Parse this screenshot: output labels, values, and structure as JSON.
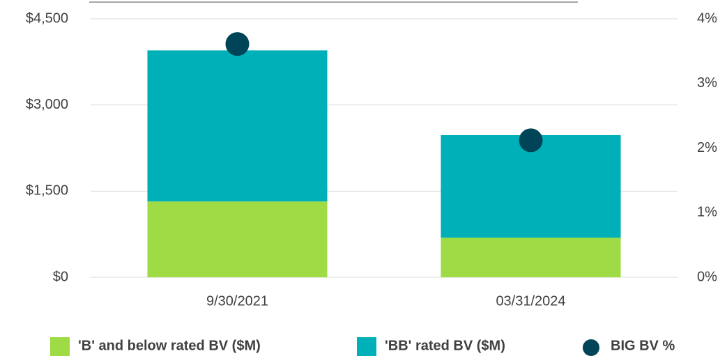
{
  "chart_data": {
    "type": "bar",
    "categories": [
      "9/30/2021",
      "03/31/2024"
    ],
    "series": [
      {
        "name": "'B' and below rated BV ($M)",
        "color": "#9edb45",
        "values": [
          1320,
          690
        ]
      },
      {
        "name": "'BB' rated BV ($M)",
        "color": "#00b0b9",
        "values": [
          2630,
          1785
        ]
      },
      {
        "name": "BIG BV %",
        "color": "#004457",
        "axis": "y2",
        "values": [
          3.61,
          2.12
        ]
      }
    ],
    "stacked": true,
    "ylim": [
      0,
      4500
    ],
    "yticks": [
      {
        "value": 0,
        "label": "$0"
      },
      {
        "value": 1500,
        "label": "$1,500"
      },
      {
        "value": 3000,
        "label": "$3,000"
      },
      {
        "value": 4500,
        "label": "$4,500"
      }
    ],
    "y2lim": [
      0,
      4
    ],
    "y2ticks": [
      {
        "value": 0,
        "label": "0%"
      },
      {
        "value": 1,
        "label": "1%"
      },
      {
        "value": 2,
        "label": "2%"
      },
      {
        "value": 3,
        "label": "3%"
      },
      {
        "value": 4,
        "label": "4%"
      }
    ],
    "grid": true,
    "legend": "bottom"
  }
}
